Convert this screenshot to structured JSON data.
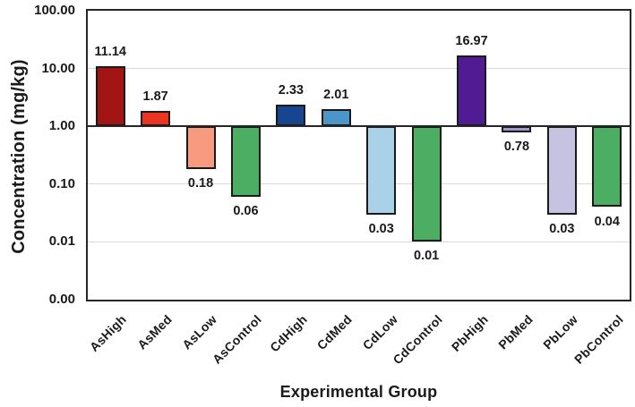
{
  "figure": {
    "background_color": "#ffffff",
    "text_color": "#1a1a1a",
    "plot_border_color": "#262626",
    "gridline_color": "#d9d9d9",
    "bar_border_color": "#1a1a1a"
  },
  "chart_data": {
    "type": "bar",
    "title": "",
    "xlabel": "Experimental Group",
    "ylabel": "Concentration (mg/kg)",
    "scale": "log",
    "grid": true,
    "legend": "none",
    "baseline": 1,
    "ylim": [
      0.001,
      100
    ],
    "y_ticks": [
      {
        "label": "100.00",
        "value": 100
      },
      {
        "label": "10.00",
        "value": 10
      },
      {
        "label": "1.00",
        "value": 1
      },
      {
        "label": "0.10",
        "value": 0.1
      },
      {
        "label": "0.01",
        "value": 0.01
      },
      {
        "label": "0.00",
        "value": 0.001
      }
    ],
    "categories": [
      "AsHigh",
      "AsMed",
      "AsLow",
      "AsControl",
      "CdHigh",
      "CdMed",
      "CdLow",
      "CdControl",
      "PbHigh",
      "PbMed",
      "PbLow",
      "PbControl"
    ],
    "values": [
      11.14,
      1.87,
      0.18,
      0.06,
      2.33,
      2.01,
      0.03,
      0.01,
      16.97,
      0.78,
      0.03,
      0.04
    ],
    "value_labels": [
      "11.14",
      "1.87",
      "0.18",
      "0.06",
      "2.33",
      "2.01",
      "0.03",
      "0.01",
      "16.97",
      "0.78",
      "0.03",
      "0.04"
    ],
    "bar_colors": [
      "#a31414",
      "#ec3423",
      "#f89a7e",
      "#4bae63",
      "#17458f",
      "#4d95c9",
      "#a9d2e8",
      "#4bae63",
      "#511b93",
      "#9b98cb",
      "#c5c2e2",
      "#4bae63"
    ]
  }
}
